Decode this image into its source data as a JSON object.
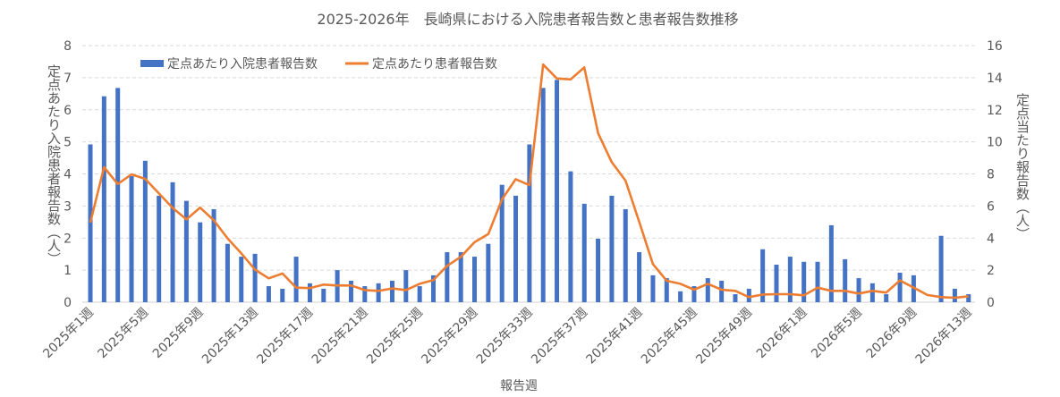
{
  "chart_data": {
    "type": "bar+line",
    "title": "2025-2026年　長崎県における入院患者報告数と患者報告数推移",
    "xlabel": "報告週",
    "ylabel_left": "定点あたり入院患者報告数（人）",
    "ylabel_right": "定点当たり報告数（人）",
    "ylim_left": [
      0,
      8
    ],
    "ylim_right": [
      0,
      16
    ],
    "yticks_left": [
      "0",
      "1",
      "2",
      "3",
      "4",
      "5",
      "6",
      "7",
      "8"
    ],
    "yticks_right": [
      "0",
      "2",
      "4",
      "6",
      "8",
      "10",
      "12",
      "14",
      "16"
    ],
    "grid": true,
    "legend_position": "top-left",
    "x_tick_labels": [
      "2025年1週",
      "2025年5週",
      "2025年9週",
      "2025年13週",
      "2025年17週",
      "2025年21週",
      "2025年25週",
      "2025年29週",
      "2025年33週",
      "2025年37週",
      "2025年41週",
      "2025年45週",
      "2025年49週",
      "2026年1週",
      "2026年5週",
      "2026年9週",
      "2026年13週"
    ],
    "series": [
      {
        "name": "定点あたり入院患者報告数",
        "type": "bar",
        "axis": "left",
        "color": "#4472C4",
        "values": [
          4.92,
          6.42,
          6.68,
          3.93,
          4.41,
          3.32,
          3.74,
          3.16,
          2.49,
          2.9,
          1.82,
          1.42,
          1.51,
          0.5,
          0.42,
          1.42,
          0.59,
          0.42,
          1.0,
          0.67,
          0.5,
          0.59,
          0.67,
          1.0,
          0.5,
          0.84,
          1.56,
          1.56,
          1.42,
          1.82,
          3.66,
          3.32,
          4.92,
          6.68,
          6.93,
          4.08,
          3.07,
          1.98,
          3.32,
          2.9,
          1.56,
          0.84,
          0.75,
          0.34,
          0.5,
          0.75,
          0.67,
          0.25,
          0.42,
          1.65,
          1.17,
          1.42,
          1.26,
          1.26,
          2.4,
          1.34,
          0.75,
          0.59,
          0.25,
          0.92,
          0.84,
          0,
          2.07,
          0.42,
          0.25
        ]
      },
      {
        "name": "定点あたり患者報告数",
        "type": "line",
        "axis": "right",
        "color": "#ED7D31",
        "values": [
          4.97,
          8.42,
          7.37,
          7.97,
          7.69,
          6.78,
          5.88,
          5.16,
          5.9,
          5.1,
          3.98,
          3.05,
          2.03,
          1.49,
          1.79,
          0.91,
          0.88,
          1.1,
          1.04,
          1.04,
          0.76,
          0.71,
          0.86,
          0.76,
          1.15,
          1.38,
          2.27,
          2.83,
          3.74,
          4.25,
          6.41,
          7.67,
          7.3,
          14.82,
          13.95,
          13.89,
          14.64,
          10.54,
          8.73,
          7.58,
          5.01,
          2.38,
          1.34,
          1.15,
          0.78,
          1.15,
          0.78,
          0.71,
          0.32,
          0.48,
          0.5,
          0.5,
          0.43,
          0.91,
          0.71,
          0.71,
          0.54,
          0.71,
          0.6,
          1.36,
          0.91,
          0.45,
          0.32,
          0.28,
          0.37
        ]
      }
    ]
  }
}
